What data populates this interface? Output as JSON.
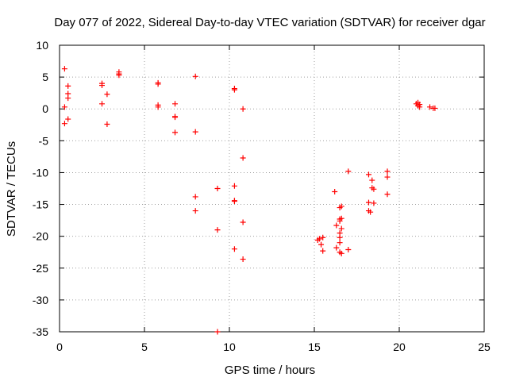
{
  "chart_data": {
    "type": "scatter",
    "title": "Day 077 of 2022, Sidereal Day-to-day VTEC variation (SDTVAR) for receiver dgar",
    "xlabel": "GPS time / hours",
    "ylabel": "SDTVAR / TECUs",
    "xlim": [
      0,
      25
    ],
    "ylim": [
      -35,
      10
    ],
    "xticks": [
      0,
      5,
      10,
      15,
      20,
      25
    ],
    "yticks": [
      10,
      5,
      0,
      -5,
      -10,
      -15,
      -20,
      -25,
      -30,
      -35
    ],
    "xtick_labels": [
      "0",
      "5",
      "10",
      "15",
      "20",
      "25"
    ],
    "ytick_labels": [
      "10",
      "5",
      "0",
      "-5",
      "-10",
      "-15",
      "-20",
      "-25",
      "-30",
      "-35"
    ],
    "grid": true,
    "marker": "plus",
    "color": "#ff0000",
    "series": [
      {
        "name": "dgar",
        "points": [
          [
            0.3,
            6.3
          ],
          [
            0.3,
            0.3
          ],
          [
            0.3,
            -2.3
          ],
          [
            0.5,
            3.6
          ],
          [
            0.5,
            2.4
          ],
          [
            0.5,
            1.7
          ],
          [
            0.5,
            -1.6
          ],
          [
            2.5,
            4.0
          ],
          [
            2.5,
            3.7
          ],
          [
            2.5,
            0.8
          ],
          [
            2.8,
            2.3
          ],
          [
            2.8,
            -2.4
          ],
          [
            3.5,
            5.8
          ],
          [
            3.5,
            5.5
          ],
          [
            3.5,
            5.3
          ],
          [
            5.8,
            4.1
          ],
          [
            5.8,
            3.9
          ],
          [
            5.8,
            0.6
          ],
          [
            5.8,
            0.3
          ],
          [
            6.8,
            0.8
          ],
          [
            6.8,
            -1.2
          ],
          [
            6.8,
            -1.3
          ],
          [
            6.8,
            -3.7
          ],
          [
            8.0,
            5.1
          ],
          [
            8.0,
            -3.6
          ],
          [
            8.0,
            -13.8
          ],
          [
            8.0,
            -16.0
          ],
          [
            9.3,
            -12.5
          ],
          [
            9.3,
            -19.0
          ],
          [
            9.3,
            -35.0
          ],
          [
            10.3,
            3.2
          ],
          [
            10.3,
            3.0
          ],
          [
            10.3,
            -12.1
          ],
          [
            10.3,
            -14.4
          ],
          [
            10.3,
            -14.5
          ],
          [
            10.3,
            -22.0
          ],
          [
            10.8,
            0.0
          ],
          [
            10.8,
            -7.7
          ],
          [
            10.8,
            -17.8
          ],
          [
            10.8,
            -23.6
          ],
          [
            15.2,
            -20.6
          ],
          [
            15.3,
            -20.4
          ],
          [
            15.4,
            -21.3
          ],
          [
            15.5,
            -20.2
          ],
          [
            15.5,
            -22.3
          ],
          [
            16.2,
            -13.0
          ],
          [
            16.3,
            -18.3
          ],
          [
            16.3,
            -21.8
          ],
          [
            16.5,
            -15.5
          ],
          [
            16.5,
            -17.3
          ],
          [
            16.5,
            -17.6
          ],
          [
            16.5,
            -19.5
          ],
          [
            16.5,
            -20.2
          ],
          [
            16.5,
            -21.0
          ],
          [
            16.5,
            -22.5
          ],
          [
            16.6,
            -15.3
          ],
          [
            16.6,
            -17.2
          ],
          [
            16.6,
            -18.8
          ],
          [
            16.6,
            -22.7
          ],
          [
            17.0,
            -9.8
          ],
          [
            17.0,
            -22.1
          ],
          [
            18.2,
            -10.3
          ],
          [
            18.2,
            -14.7
          ],
          [
            18.2,
            -16.0
          ],
          [
            18.3,
            -16.2
          ],
          [
            18.4,
            -11.2
          ],
          [
            18.4,
            -12.4
          ],
          [
            18.5,
            -12.6
          ],
          [
            18.5,
            -14.8
          ],
          [
            19.3,
            -9.8
          ],
          [
            19.3,
            -10.7
          ],
          [
            19.3,
            -13.4
          ],
          [
            21.0,
            0.8
          ],
          [
            21.1,
            1.0
          ],
          [
            21.1,
            0.5
          ],
          [
            21.2,
            0.7
          ],
          [
            21.2,
            0.3
          ],
          [
            21.8,
            0.3
          ],
          [
            22.0,
            0.1
          ],
          [
            22.1,
            0.1
          ]
        ]
      }
    ]
  }
}
